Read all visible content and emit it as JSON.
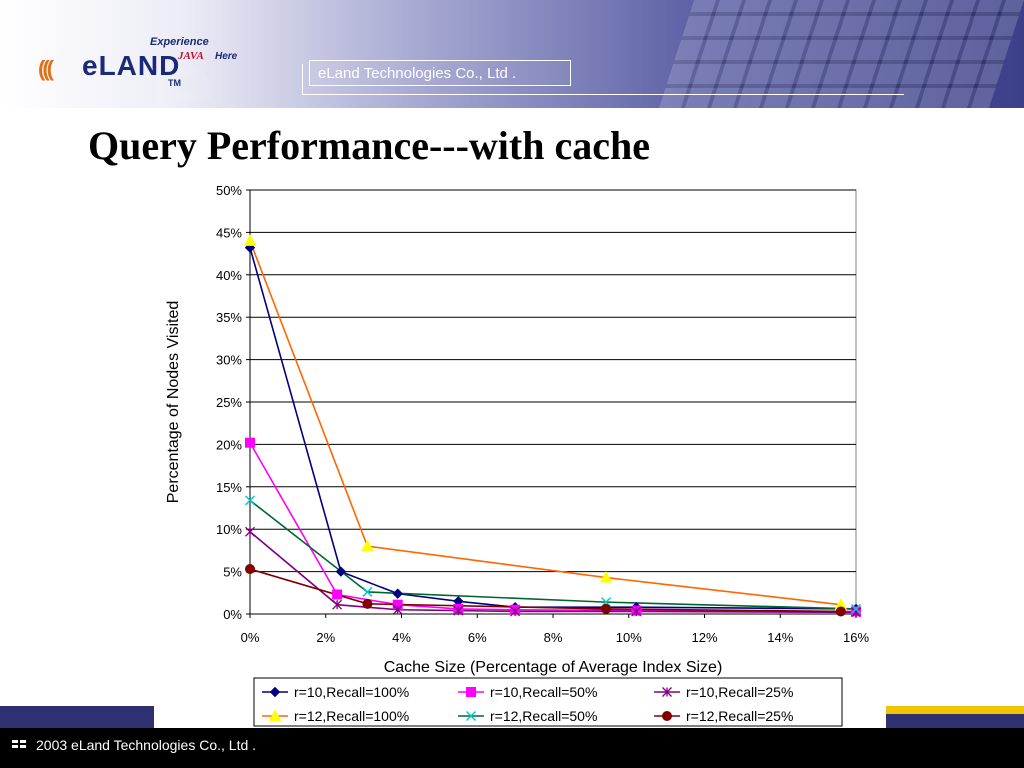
{
  "header": {
    "logo_main": "eLAND",
    "logo_tm": "TM",
    "logo_experience": "Experience",
    "logo_java": "JAVA",
    "logo_here": "Here",
    "company_box": "eLand Technologies Co., Ltd ."
  },
  "slide": {
    "title": "Query Performance---with cache"
  },
  "footer": {
    "text": "2003 eLand Technologies Co., Ltd ."
  },
  "chart_data": {
    "type": "line",
    "xlabel": "Cache Size (Percentage of Average Index Size)",
    "ylabel": "Percentage of Nodes Visited",
    "xlim": [
      0,
      16
    ],
    "ylim": [
      0,
      50
    ],
    "x_ticks": [
      "0%",
      "2%",
      "4%",
      "6%",
      "8%",
      "10%",
      "12%",
      "14%",
      "16%"
    ],
    "y_ticks": [
      "0%",
      "5%",
      "10%",
      "15%",
      "20%",
      "25%",
      "30%",
      "35%",
      "40%",
      "45%",
      "50%"
    ],
    "grid": "horizontal",
    "legend_position": "bottom",
    "series": [
      {
        "name": "r=10,Recall=100%",
        "color": "#000080",
        "marker": "diamond",
        "x": [
          0,
          2.4,
          3.9,
          5.5,
          7,
          10.2,
          16
        ],
        "y": [
          43.2,
          5.0,
          2.4,
          1.5,
          0.8,
          0.8,
          0.6
        ]
      },
      {
        "name": "r=10,Recall=50%",
        "color": "#ff00ff",
        "marker": "square",
        "x": [
          0,
          2.3,
          3.9,
          5.5,
          7,
          10.2,
          16
        ],
        "y": [
          20.2,
          2.3,
          1.1,
          0.6,
          0.5,
          0.4,
          0.3
        ]
      },
      {
        "name": "r=10,Recall=25%",
        "color": "#800080",
        "marker": "star",
        "x": [
          0,
          2.3,
          3.9,
          5.5,
          7,
          10.2,
          16
        ],
        "y": [
          9.7,
          1.1,
          0.5,
          0.4,
          0.3,
          0.3,
          0.2
        ]
      },
      {
        "name": "r=12,Recall=100%",
        "color": "#ff6600",
        "marker": "triangle",
        "x": [
          0,
          3.1,
          9.4,
          15.6
        ],
        "y": [
          44.0,
          8.0,
          4.3,
          1.1
        ]
      },
      {
        "name": "r=12,Recall=50%",
        "color": "#006633",
        "marker": "x",
        "x": [
          0,
          3.1,
          9.4,
          16
        ],
        "y": [
          13.4,
          2.6,
          1.4,
          0.6
        ]
      },
      {
        "name": "r=12,Recall=25%",
        "color": "#800000",
        "marker": "circle",
        "x": [
          0,
          3.1,
          9.4,
          15.6
        ],
        "y": [
          5.3,
          1.2,
          0.6,
          0.3
        ]
      }
    ]
  }
}
